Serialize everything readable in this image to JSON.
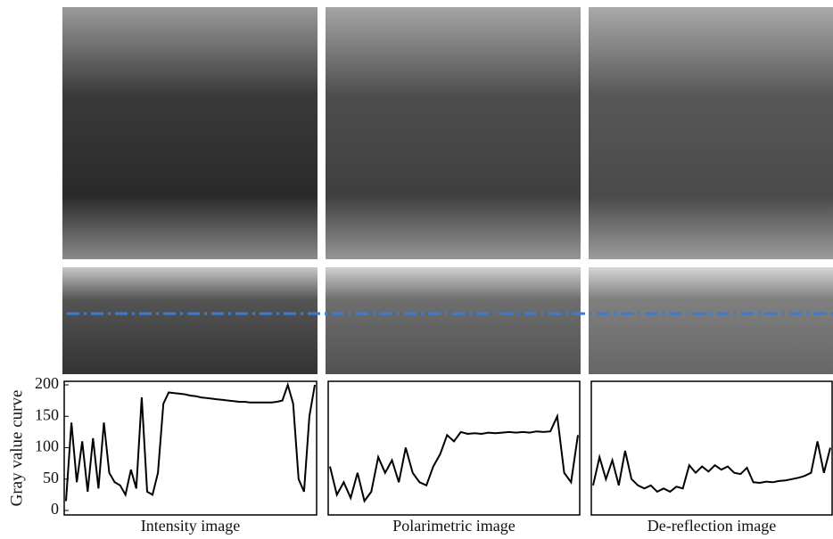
{
  "chart_data": [
    {
      "type": "line",
      "xlabel": "Intensity image",
      "ylabel": "Gray value curve",
      "color": "#000000",
      "ylim": [
        0,
        200
      ],
      "yticks": [
        0,
        50,
        100,
        150,
        200
      ],
      "values": [
        15,
        140,
        45,
        110,
        30,
        115,
        35,
        140,
        60,
        45,
        40,
        25,
        65,
        35,
        180,
        30,
        25,
        60,
        170,
        188,
        187,
        186,
        185,
        183,
        182,
        180,
        179,
        178,
        177,
        176,
        175,
        174,
        173,
        173,
        172,
        172,
        172,
        172,
        172,
        173,
        175,
        200,
        170,
        50,
        30,
        150,
        200
      ]
    },
    {
      "type": "line",
      "xlabel": "Polarimetric image",
      "color": "#000000",
      "ylim": [
        0,
        200
      ],
      "values": [
        70,
        25,
        45,
        20,
        60,
        15,
        30,
        85,
        60,
        80,
        45,
        100,
        60,
        45,
        40,
        70,
        90,
        120,
        110,
        125,
        122,
        123,
        122,
        124,
        123,
        124,
        125,
        124,
        125,
        124,
        126,
        125,
        126,
        150,
        60,
        45,
        120
      ]
    },
    {
      "type": "line",
      "xlabel": "De-reflection image",
      "color": "#000000",
      "ylim": [
        0,
        200
      ],
      "values": [
        40,
        85,
        50,
        80,
        40,
        95,
        50,
        40,
        35,
        40,
        30,
        35,
        30,
        38,
        35,
        72,
        60,
        70,
        62,
        72,
        65,
        70,
        60,
        58,
        68,
        45,
        44,
        46,
        45,
        47,
        48,
        50,
        52,
        55,
        60,
        110,
        60,
        100
      ]
    }
  ]
}
